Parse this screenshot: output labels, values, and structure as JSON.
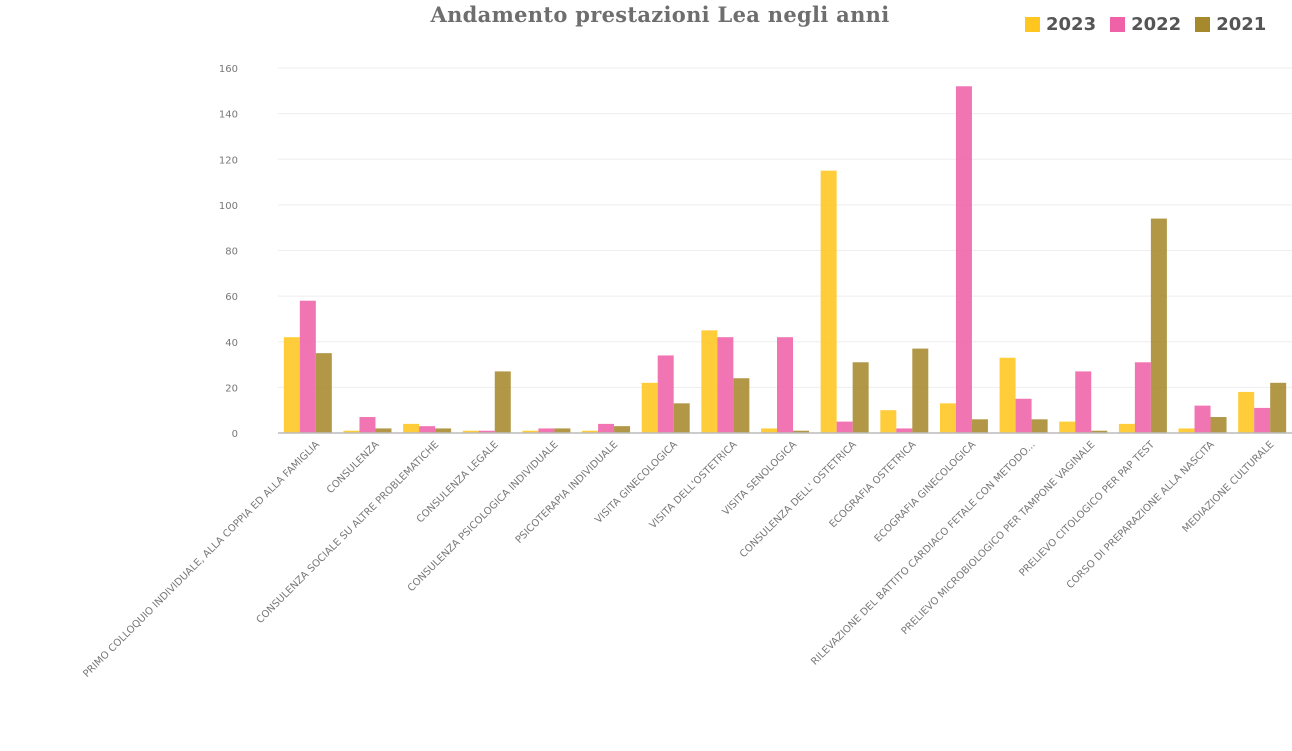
{
  "chart_data": {
    "type": "bar",
    "title": "Andamento prestazioni Lea negli anni",
    "categories": [
      "PRIMO COLLOQUIO INDIVIDUALE, ALLA COPPIA ED ALLA FAMIGLIA",
      "CONSULENZA",
      "CONSULENZA SOCIALE SU ALTRE PROBLEMATICHE",
      "CONSULENZA LEGALE",
      "CONSULENZA PSICOLOGICA INDIVIDUALE",
      "PSICOTERAPIA INDIVIDUALE",
      "VISITA GINECOLOGICA",
      "VISITA  DELL'OSTETRICA",
      "VISITA SENOLOGICA",
      "CONSULENZA DELL' OSTETRICA",
      "ECOGRAFIA OSTETRICA",
      "ECOGRAFIA GINECOLOGICA",
      "RILEVAZIONE DEL BATTITO CARDIACO FETALE CON METODO...",
      "PRELIEVO MICROBIOLOGICO PER TAMPONE VAGINALE",
      "PRELIEVO CITOLOGICO PER PAP TEST",
      "CORSO DI PREPARAZIONE ALLA NASCITA",
      "MEDIAZIONE CULTURALE"
    ],
    "series": [
      {
        "name": "2023",
        "color": "#ffc61f",
        "values": [
          42,
          1,
          4,
          1,
          1,
          1,
          22,
          45,
          2,
          115,
          10,
          13,
          33,
          5,
          4,
          2,
          18
        ]
      },
      {
        "name": "2022",
        "color": "#ef62a8",
        "values": [
          58,
          7,
          3,
          1,
          2,
          4,
          34,
          42,
          42,
          5,
          2,
          152,
          15,
          27,
          31,
          12,
          11
        ]
      },
      {
        "name": "2021",
        "color": "#a6892c",
        "values": [
          35,
          2,
          2,
          27,
          2,
          3,
          13,
          24,
          1,
          31,
          37,
          6,
          6,
          1,
          94,
          7,
          22
        ]
      }
    ],
    "ylim": [
      0,
      160
    ],
    "yticks": [
      0,
      20,
      40,
      60,
      80,
      100,
      120,
      140,
      160
    ],
    "grid": true,
    "legend": "top-right"
  }
}
